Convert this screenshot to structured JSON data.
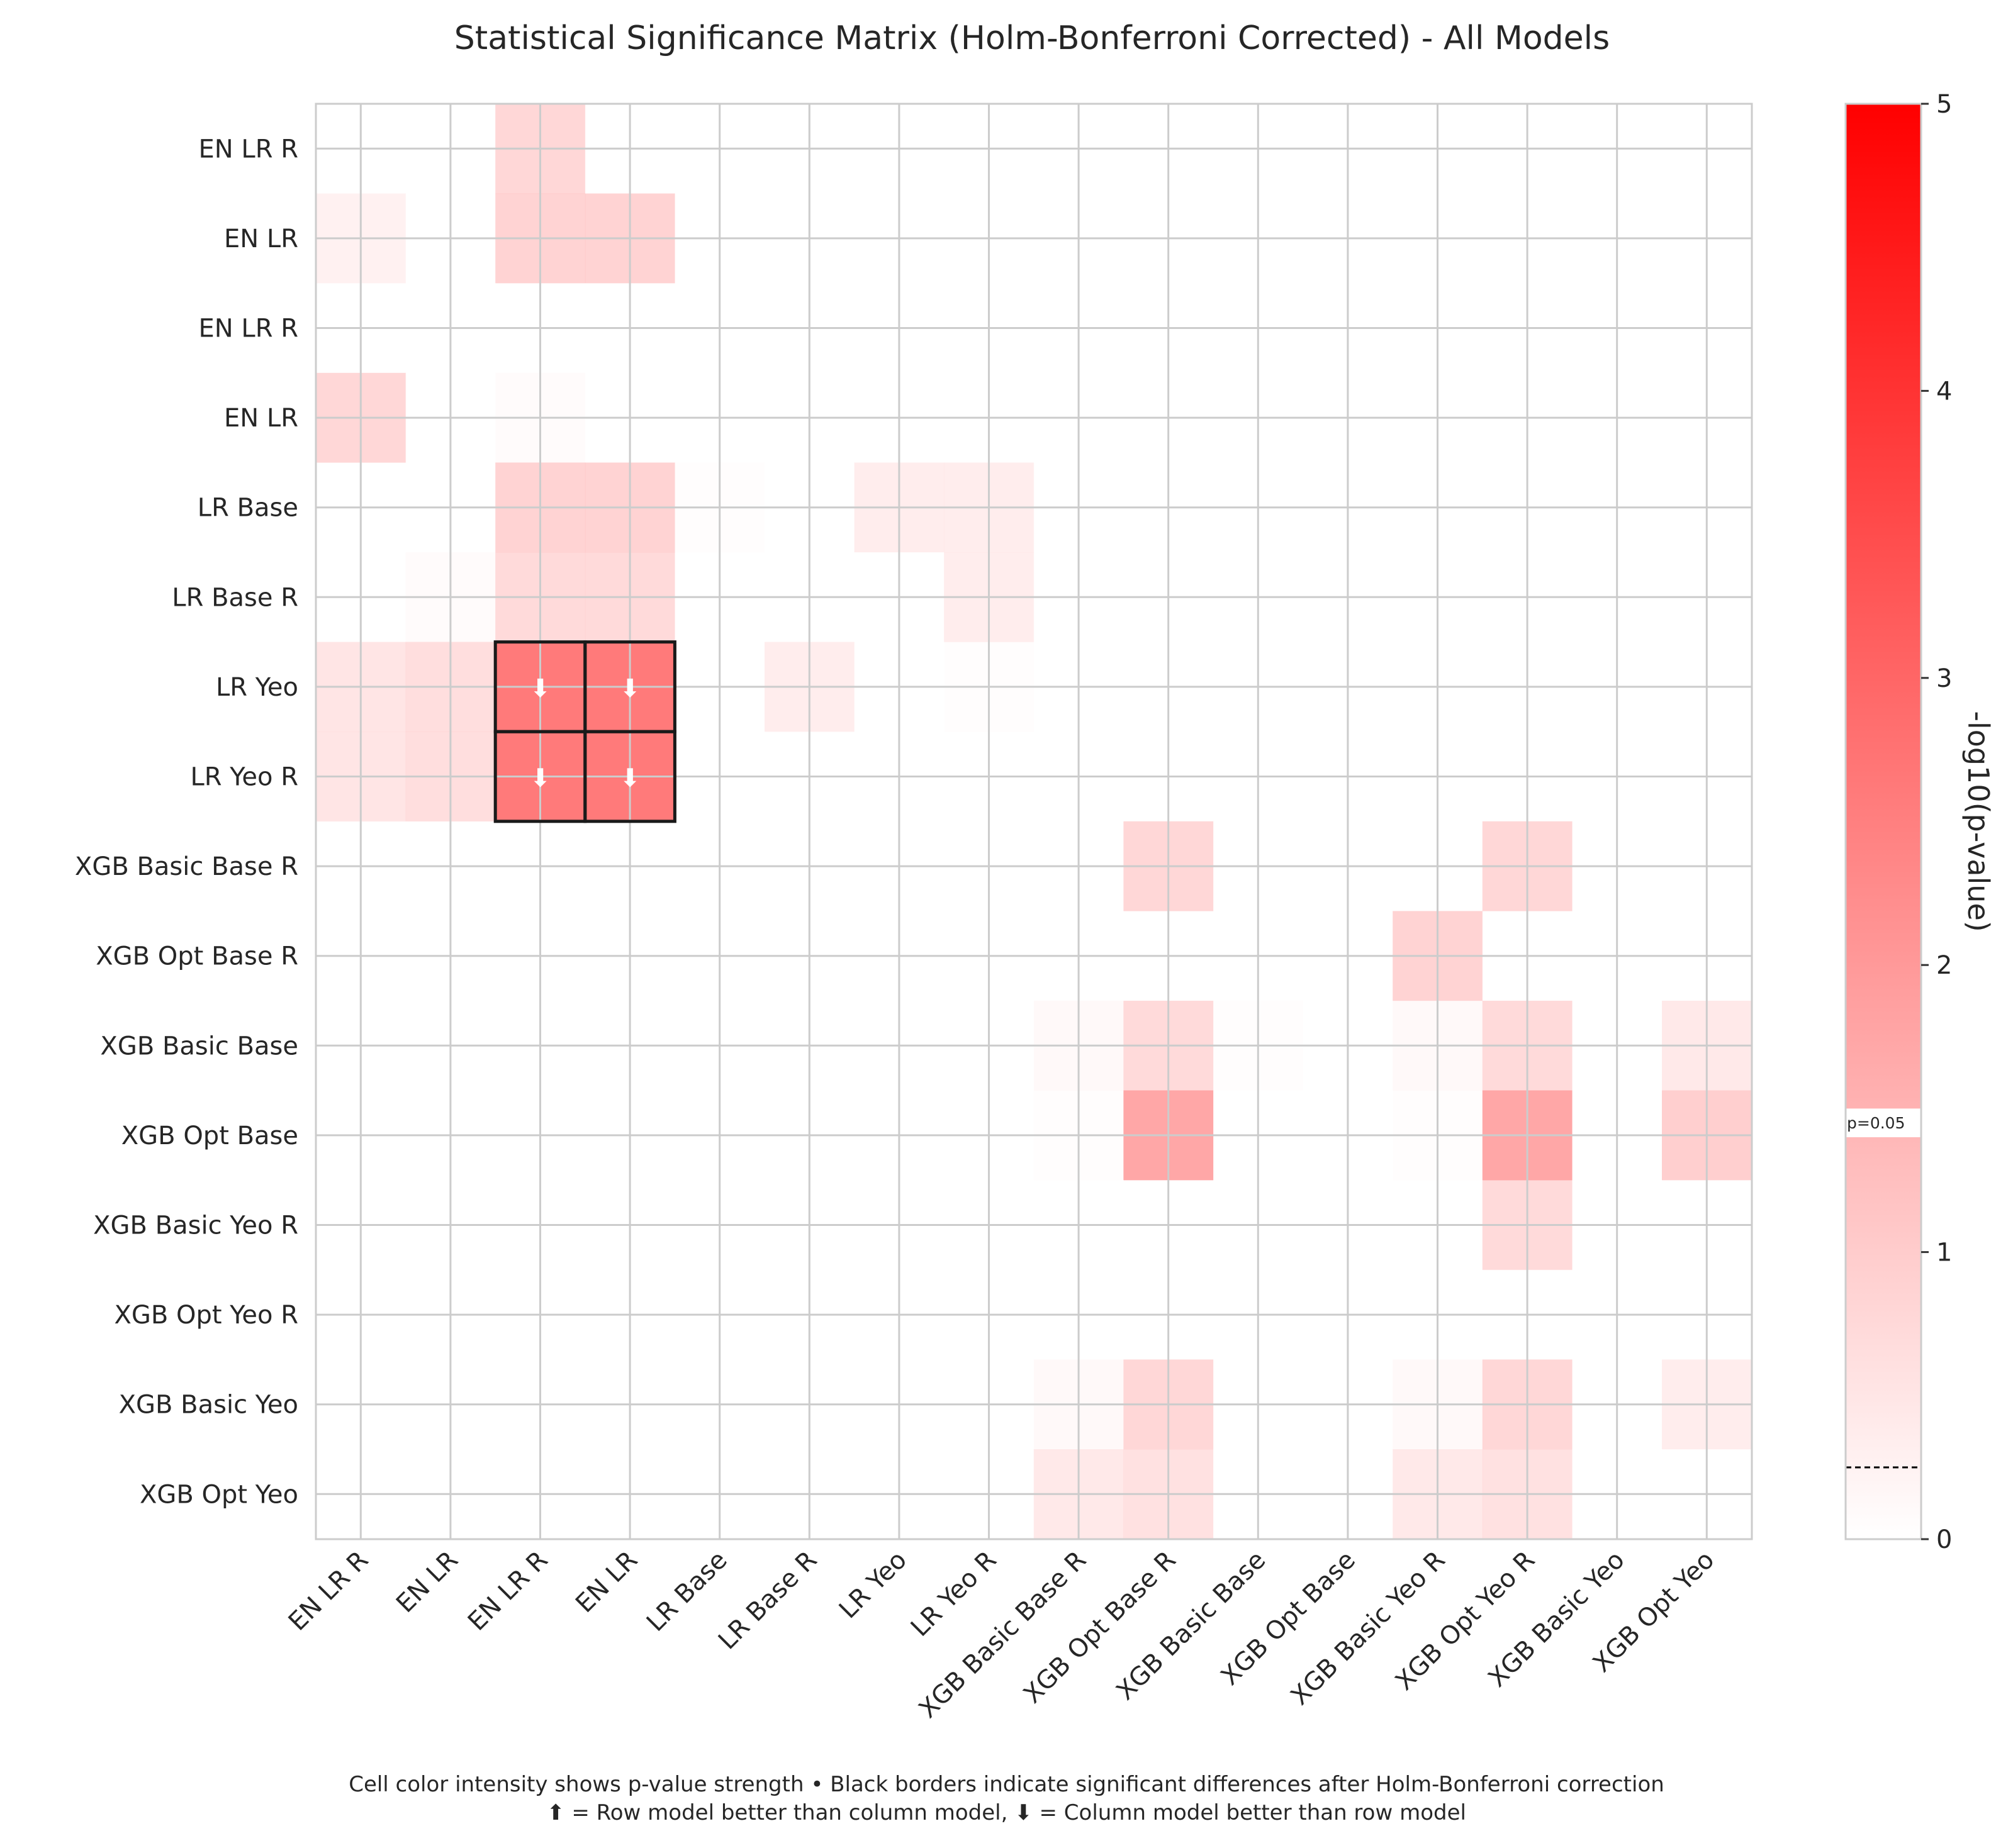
{
  "chart_data": {
    "type": "heatmap",
    "title": "Statistical Significance Matrix (Holm-Bonferroni Corrected) - All Models",
    "row_labels": [
      "EN LR R",
      "EN LR",
      "EN LR R",
      "EN LR",
      "LR Base",
      "LR Base R",
      "LR Yeo",
      "LR Yeo R",
      "XGB Basic Base R",
      "XGB Opt Base R",
      "XGB Basic Base",
      "XGB Opt Base",
      "XGB Basic Yeo R",
      "XGB Opt Yeo R",
      "XGB Basic Yeo",
      "XGB Opt Yeo"
    ],
    "col_labels": [
      "EN LR R",
      "EN LR",
      "EN LR R",
      "EN LR",
      "LR Base",
      "LR Base R",
      "LR Yeo",
      "LR Yeo R",
      "XGB Basic Base R",
      "XGB Opt Base R",
      "XGB Basic Base",
      "XGB Opt Base",
      "XGB Basic Yeo R",
      "XGB Opt Yeo R",
      "XGB Basic Yeo",
      "XGB Opt Yeo"
    ],
    "values": [
      [
        0,
        0,
        1.1,
        0,
        0,
        0,
        0,
        0,
        0,
        0,
        0,
        0,
        0,
        0,
        0,
        0
      ],
      [
        0.4,
        0,
        1.2,
        1.2,
        0,
        0,
        0,
        0,
        0,
        0,
        0,
        0,
        0,
        0,
        0,
        0
      ],
      [
        0,
        0,
        0,
        0,
        0,
        0,
        0,
        0,
        0,
        0,
        0,
        0,
        0,
        0,
        0,
        0
      ],
      [
        1.1,
        0,
        0.1,
        0,
        0,
        0,
        0,
        0,
        0,
        0,
        0,
        0,
        0,
        0,
        0,
        0
      ],
      [
        0,
        0,
        1.2,
        1.2,
        0.05,
        0,
        0.5,
        0.5,
        0,
        0,
        0,
        0,
        0,
        0,
        0,
        0
      ],
      [
        0,
        0.1,
        1.0,
        1.0,
        0,
        0,
        0,
        0.5,
        0,
        0,
        0,
        0,
        0,
        0,
        0,
        0
      ],
      [
        0.7,
        0.9,
        3.6,
        3.6,
        0,
        0.5,
        0,
        0.05,
        0,
        0,
        0,
        0,
        0,
        0,
        0,
        0
      ],
      [
        0.7,
        0.9,
        3.6,
        3.6,
        0,
        0,
        0,
        0,
        0,
        0,
        0,
        0,
        0,
        0,
        0,
        0
      ],
      [
        0,
        0,
        0,
        0,
        0,
        0,
        0,
        0,
        0,
        1.1,
        0,
        0,
        0,
        1.1,
        0,
        0
      ],
      [
        0,
        0,
        0,
        0,
        0,
        0,
        0,
        0,
        0,
        0,
        0,
        0,
        1.2,
        0,
        0,
        0
      ],
      [
        0,
        0,
        0,
        0,
        0,
        0,
        0,
        0,
        0.15,
        1.0,
        0.05,
        0,
        0.15,
        1.0,
        0,
        0.6
      ],
      [
        0,
        0,
        0,
        0,
        0,
        0,
        0,
        0,
        0.05,
        2.4,
        0,
        0,
        0.05,
        2.4,
        0,
        1.3
      ],
      [
        0,
        0,
        0,
        0,
        0,
        0,
        0,
        0,
        0,
        0,
        0,
        0,
        0,
        1.0,
        0,
        0
      ],
      [
        0,
        0,
        0,
        0,
        0,
        0,
        0,
        0,
        0,
        0,
        0,
        0,
        0,
        0,
        0,
        0
      ],
      [
        0,
        0,
        0,
        0,
        0,
        0,
        0,
        0,
        0.15,
        1.1,
        0,
        0,
        0.15,
        1.1,
        0,
        0.5
      ],
      [
        0,
        0,
        0,
        0,
        0,
        0,
        0,
        0,
        0.6,
        0.8,
        0,
        0,
        0.6,
        0.8,
        0,
        0
      ]
    ],
    "significant_cells": [
      {
        "row": 6,
        "col": 2,
        "arrow": "⬇"
      },
      {
        "row": 6,
        "col": 3,
        "arrow": "⬇"
      },
      {
        "row": 7,
        "col": 2,
        "arrow": "⬇"
      },
      {
        "row": 7,
        "col": 3,
        "arrow": "⬇"
      }
    ],
    "colorbar": {
      "label": "-log10(p-value)",
      "range": [
        0,
        5
      ],
      "ticks": [
        "0",
        "1",
        "2",
        "3",
        "4",
        "5"
      ],
      "threshold_label": "p=0.05",
      "threshold_gap": [
        1.4,
        1.5
      ],
      "dashed_line_value": 0.25,
      "colors": [
        "#ffffff",
        "#ff0000"
      ]
    },
    "grid": true
  },
  "footer": {
    "line1": "Cell color intensity shows p-value strength • Black borders indicate significant differences after Holm-Bonferroni correction",
    "line2": "⬆ = Row model better than column model, ⬇ = Column model better than row model"
  }
}
